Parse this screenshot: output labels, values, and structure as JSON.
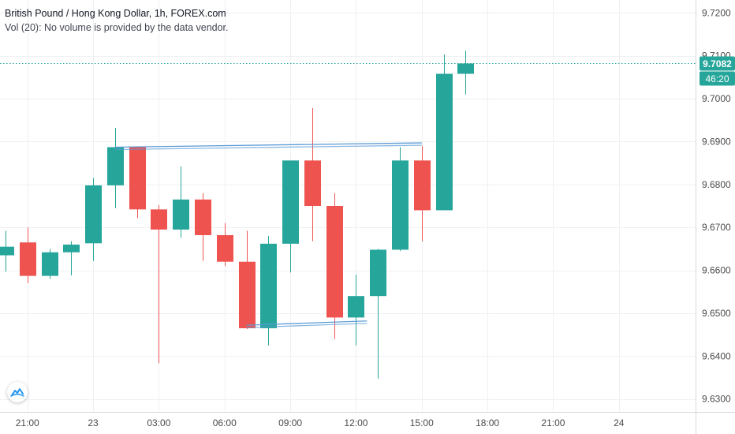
{
  "legend": {
    "title": "British Pound / Hong Kong Dollar, 1h, FOREX.com",
    "volume_note": "Vol (20): No volume is provided by the data vendor."
  },
  "price_badge": {
    "value": "9.7082",
    "countdown": "46:20"
  },
  "colors": {
    "up": "#26a69a",
    "down": "#ef5350",
    "trendline": "#5b9bd5",
    "price_line": "#26a69a",
    "grid": "#eef0f3",
    "axis_text": "#4a4a4a"
  },
  "chart_data": {
    "type": "candlestick",
    "title": "British Pound / Hong Kong Dollar, 1h, FOREX.com",
    "y_ticks": [
      "9.6300",
      "9.6400",
      "9.6500",
      "9.6600",
      "9.6700",
      "9.6800",
      "9.6900",
      "9.7000",
      "9.7100",
      "9.7200"
    ],
    "x_ticks": [
      {
        "label": "18:00",
        "x": -2
      },
      {
        "label": "21:00",
        "x": 1
      },
      {
        "label": "23",
        "x": 4
      },
      {
        "label": "03:00",
        "x": 7
      },
      {
        "label": "06:00",
        "x": 10
      },
      {
        "label": "09:00",
        "x": 13
      },
      {
        "label": "12:00",
        "x": 16
      },
      {
        "label": "15:00",
        "x": 19
      },
      {
        "label": "18:00",
        "x": 22
      },
      {
        "label": "21:00",
        "x": 25
      },
      {
        "label": "24",
        "x": 28
      }
    ],
    "candles": [
      {
        "x": 0,
        "o": 9.6635,
        "h": 9.6692,
        "l": 9.6597,
        "c": 9.6655
      },
      {
        "x": 1,
        "o": 9.6665,
        "h": 9.67,
        "l": 9.657,
        "c": 9.6587
      },
      {
        "x": 2,
        "o": 9.6587,
        "h": 9.665,
        "l": 9.658,
        "c": 9.6642
      },
      {
        "x": 3,
        "o": 9.6642,
        "h": 9.6668,
        "l": 9.6588,
        "c": 9.666
      },
      {
        "x": 4,
        "o": 9.6663,
        "h": 9.6815,
        "l": 9.6622,
        "c": 9.6798
      },
      {
        "x": 5,
        "o": 9.6798,
        "h": 9.6932,
        "l": 9.6745,
        "c": 9.6887
      },
      {
        "x": 6,
        "o": 9.6887,
        "h": 9.6889,
        "l": 9.6722,
        "c": 9.6742
      },
      {
        "x": 7,
        "o": 9.6742,
        "h": 9.6752,
        "l": 9.6383,
        "c": 9.6695
      },
      {
        "x": 8,
        "o": 9.6695,
        "h": 9.6842,
        "l": 9.6676,
        "c": 9.6765
      },
      {
        "x": 9,
        "o": 9.6765,
        "h": 9.678,
        "l": 9.6622,
        "c": 9.6682
      },
      {
        "x": 10,
        "o": 9.6682,
        "h": 9.671,
        "l": 9.661,
        "c": 9.662
      },
      {
        "x": 11,
        "o": 9.662,
        "h": 9.6692,
        "l": 9.6463,
        "c": 9.6465
      },
      {
        "x": 12,
        "o": 9.6465,
        "h": 9.668,
        "l": 9.6425,
        "c": 9.6662
      },
      {
        "x": 13,
        "o": 9.6662,
        "h": 9.6856,
        "l": 9.6595,
        "c": 9.6856
      },
      {
        "x": 14,
        "o": 9.6856,
        "h": 9.6978,
        "l": 9.6668,
        "c": 9.675
      },
      {
        "x": 15,
        "o": 9.675,
        "h": 9.678,
        "l": 9.644,
        "c": 9.649
      },
      {
        "x": 16,
        "o": 9.649,
        "h": 9.659,
        "l": 9.6425,
        "c": 9.654
      },
      {
        "x": 17,
        "o": 9.654,
        "h": 9.665,
        "l": 9.6348,
        "c": 9.6648
      },
      {
        "x": 18,
        "o": 9.6648,
        "h": 9.6887,
        "l": 9.6645,
        "c": 9.6856
      },
      {
        "x": 19,
        "o": 9.6856,
        "h": 9.689,
        "l": 9.6668,
        "c": 9.674
      },
      {
        "x": 20,
        "o": 9.674,
        "h": 9.7103,
        "l": 9.674,
        "c": 9.7058
      },
      {
        "x": 21,
        "o": 9.7058,
        "h": 9.7112,
        "l": 9.701,
        "c": 9.7082
      }
    ],
    "trendlines": [
      {
        "x1": 5,
        "y1": 9.6887,
        "x2": 19,
        "y2": 9.6897
      },
      {
        "x1": 11,
        "y1": 9.6472,
        "x2": 16.5,
        "y2": 9.6482
      }
    ],
    "last_price": 9.7082,
    "ylim": [
      9.627,
      9.723
    ],
    "xlim": [
      -0.25,
      31.5
    ],
    "grid": true
  }
}
